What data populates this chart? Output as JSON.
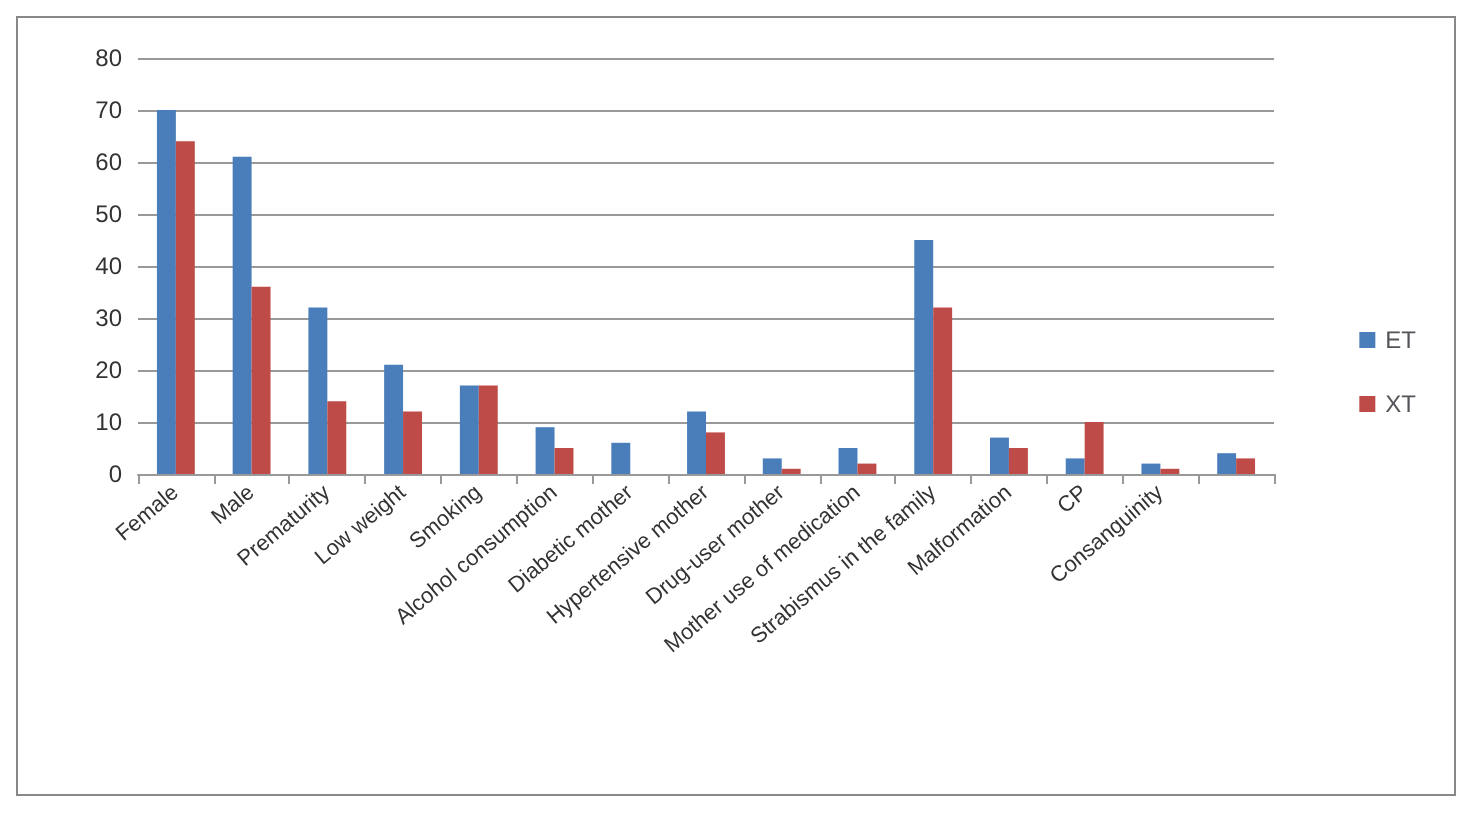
{
  "chart_data": {
    "type": "bar",
    "categories": [
      "Female",
      "Male",
      "Prematurity",
      "Low weight",
      "Smoking",
      "Alcohol consumption",
      "Diabetic mother",
      "Hypertensive mother",
      "Drug-user mother",
      "Mother use of medication",
      "Strabismus in the family",
      "Malformation",
      "CP",
      "Consanguinity",
      null
    ],
    "series": [
      {
        "name": "ET",
        "color": "#4a7ebb",
        "values": [
          70,
          61,
          32,
          21,
          17,
          9,
          6,
          12,
          3,
          5,
          45,
          7,
          3,
          2,
          4
        ]
      },
      {
        "name": "XT",
        "color": "#be4b48",
        "values": [
          64,
          36,
          14,
          12,
          17,
          5,
          0,
          8,
          1,
          2,
          32,
          5,
          10,
          1,
          3
        ]
      }
    ],
    "ylim": [
      0,
      80
    ],
    "yticks": [
      0,
      10,
      20,
      30,
      40,
      50,
      60,
      70,
      80
    ],
    "grid": "y",
    "legend": "right"
  }
}
